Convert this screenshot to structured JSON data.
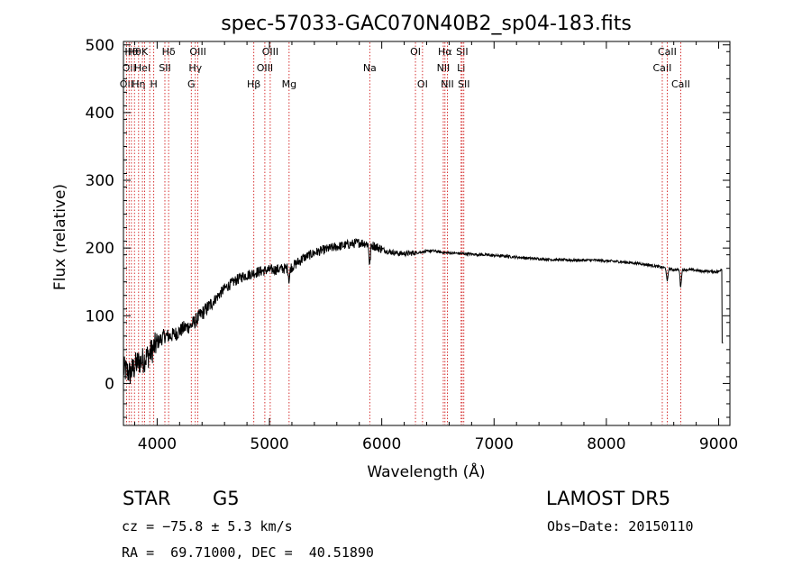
{
  "chart_data": {
    "type": "line",
    "title": "spec-57033-GAC070N40B2_sp04-183.fits",
    "xlabel": "Wavelength (Å)",
    "ylabel": "Flux (relative)",
    "xlim": [
      3700,
      9100
    ],
    "ylim": [
      -62,
      505
    ],
    "x_ticks": [
      4000,
      5000,
      6000,
      7000,
      8000,
      9000
    ],
    "y_ticks": [
      0,
      100,
      200,
      300,
      400,
      500
    ],
    "grid": false,
    "line_color": "#000000",
    "marker_color": "#cc0000",
    "spectrum_anchors": {
      "x": [
        3710,
        3760,
        3820,
        3880,
        3940,
        4000,
        4060,
        4120,
        4180,
        4240,
        4300,
        4340,
        4380,
        4450,
        4520,
        4600,
        4680,
        4760,
        4840,
        4900,
        4960,
        5050,
        5150,
        5200,
        5300,
        5400,
        5500,
        5600,
        5700,
        5800,
        5860,
        5900,
        5950,
        6050,
        6150,
        6250,
        6350,
        6450,
        6560,
        6700,
        6900,
        7100,
        7300,
        7500,
        7700,
        7900,
        8100,
        8300,
        8450,
        8540,
        8600,
        8660,
        8750,
        8850,
        9000,
        9030
      ],
      "y": [
        20,
        15,
        30,
        35,
        45,
        60,
        70,
        70,
        75,
        82,
        85,
        92,
        100,
        112,
        125,
        140,
        150,
        158,
        162,
        165,
        167,
        168,
        170,
        172,
        185,
        193,
        198,
        202,
        205,
        208,
        207,
        205,
        202,
        195,
        192,
        192,
        194,
        196,
        193,
        192,
        190,
        188,
        185,
        183,
        182,
        182,
        180,
        177,
        173,
        170,
        168,
        168,
        168,
        166,
        165,
        170
      ]
    },
    "absorption_dips": [
      {
        "x": 5893,
        "depth": 30
      },
      {
        "x": 8542,
        "depth": 20
      },
      {
        "x": 8662,
        "depth": 25
      },
      {
        "x": 5175,
        "depth": 18
      }
    ],
    "line_markers": [
      {
        "x": 3727,
        "label": "OII",
        "row": 2
      },
      {
        "x": 3750,
        "label": "OII",
        "row": 1
      },
      {
        "x": 3771,
        "label": "Hθ",
        "row": 0
      },
      {
        "x": 3798,
        "label": "Hθ",
        "row": 0
      },
      {
        "x": 3835,
        "label": "Hη",
        "row": 2
      },
      {
        "x": 3869,
        "label": "HeI",
        "row": 1
      },
      {
        "x": 3889,
        "label": "K",
        "row": 0
      },
      {
        "x": 3934,
        "label": "",
        "row": 0
      },
      {
        "x": 3970,
        "label": "H",
        "row": 2
      },
      {
        "x": 4069,
        "label": "SII",
        "row": 1
      },
      {
        "x": 4102,
        "label": "Hδ",
        "row": 0
      },
      {
        "x": 4304,
        "label": "G",
        "row": 2
      },
      {
        "x": 4340,
        "label": "Hγ",
        "row": 1
      },
      {
        "x": 4363,
        "label": "OIII",
        "row": 0
      },
      {
        "x": 4861,
        "label": "Hβ",
        "row": 2
      },
      {
        "x": 4959,
        "label": "OIII",
        "row": 1
      },
      {
        "x": 5007,
        "label": "OIII",
        "row": 0
      },
      {
        "x": 5175,
        "label": "Mg",
        "row": 2
      },
      {
        "x": 5893,
        "label": "Na",
        "row": 1
      },
      {
        "x": 6300,
        "label": "OI",
        "row": 0
      },
      {
        "x": 6363,
        "label": "OI",
        "row": 2
      },
      {
        "x": 6548,
        "label": "NII",
        "row": 1
      },
      {
        "x": 6563,
        "label": "Hα",
        "row": 0
      },
      {
        "x": 6584,
        "label": "NII",
        "row": 2
      },
      {
        "x": 6707,
        "label": "Li",
        "row": 1
      },
      {
        "x": 6716,
        "label": "SII",
        "row": 0
      },
      {
        "x": 6731,
        "label": "SII",
        "row": 2
      },
      {
        "x": 8498,
        "label": "CaII",
        "row": 1
      },
      {
        "x": 8542,
        "label": "CaII",
        "row": 0
      },
      {
        "x": 8662,
        "label": "CaII",
        "row": 2
      }
    ]
  },
  "info": {
    "object_class": "STAR",
    "subclass": "G5",
    "survey": "LAMOST DR5",
    "velocity": "cz = −75.8 ± 5.3 km/s",
    "obs_date": "Obs−Date: 20150110",
    "coords": "RA =  69.71000, DEC =  40.51890"
  }
}
